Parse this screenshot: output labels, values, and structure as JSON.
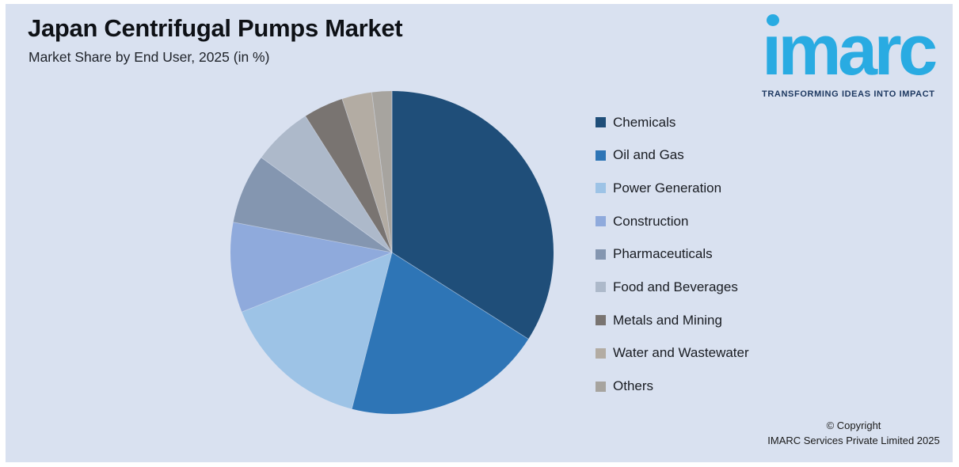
{
  "header": {
    "title": "Japan Centrifugal Pumps Market",
    "subtitle": "Market Share by End User, 2025 (in %)"
  },
  "logo": {
    "wordmark": "imarc",
    "tagline": "TRANSFORMING IDEAS INTO IMPACT",
    "brand_blue": "#29ABE2",
    "tagline_navy": "#1D3860"
  },
  "chart_data": {
    "type": "pie",
    "title": "Japan Centrifugal Pumps Market",
    "subtitle": "Market Share by End User, 2025 (in %)",
    "unit": "%",
    "start_angle": "12-oclock",
    "direction": "clockwise",
    "legend_position": "right",
    "categories": [
      "Chemicals",
      "Oil and Gas",
      "Power Generation",
      "Construction",
      "Pharmaceuticals",
      "Food and Beverages",
      "Metals and Mining",
      "Water and Wastewater",
      "Others"
    ],
    "values": [
      34,
      20,
      15,
      9,
      7,
      6,
      4,
      3,
      2
    ],
    "colors": [
      "#1F4E79",
      "#2E75B6",
      "#9DC3E6",
      "#8FAADC",
      "#8496B0",
      "#ADB9CA",
      "#797471",
      "#B3ACA3",
      "#A7A49F"
    ]
  },
  "footer": {
    "line1": "© Copyright",
    "line2": "IMARC Services Private Limited 2025"
  },
  "theme": {
    "panel_bg": "#D9E1F0",
    "page_bg": "#FFFFFF"
  }
}
